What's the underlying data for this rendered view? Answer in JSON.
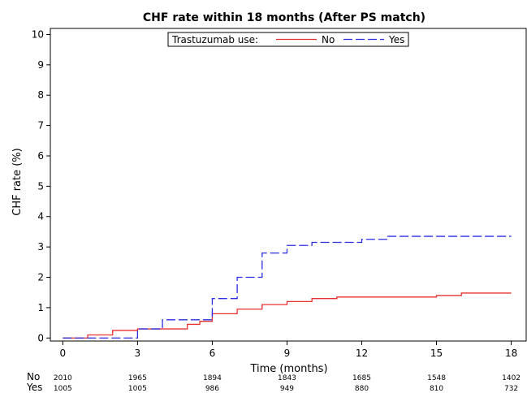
{
  "chart_data": {
    "type": "line",
    "title": "CHF rate within 18 months (After PS match)",
    "xlabel": "Time (months)",
    "ylabel": "CHF rate (%)",
    "xlim": [
      -0.5,
      18.6
    ],
    "ylim": [
      -0.1,
      10.2
    ],
    "xticks": [
      0,
      3,
      6,
      9,
      12,
      15,
      18
    ],
    "yticks": [
      0,
      1,
      2,
      3,
      4,
      5,
      6,
      7,
      8,
      9,
      10
    ],
    "grid": false,
    "legend": {
      "title": "Trastuzumab use:",
      "placement": "top-center",
      "entries": [
        "No",
        "Yes"
      ]
    },
    "series": [
      {
        "name": "No",
        "color": "#e8312f",
        "dash": "solid",
        "step": true,
        "points": [
          [
            0,
            0
          ],
          [
            1,
            0.1
          ],
          [
            2,
            0.25
          ],
          [
            3,
            0.3
          ],
          [
            4,
            0.3
          ],
          [
            5,
            0.45
          ],
          [
            5.5,
            0.55
          ],
          [
            6,
            0.8
          ],
          [
            7,
            0.95
          ],
          [
            8,
            1.1
          ],
          [
            9,
            1.2
          ],
          [
            10,
            1.3
          ],
          [
            11,
            1.35
          ],
          [
            15,
            1.4
          ],
          [
            16,
            1.48
          ],
          [
            18,
            1.48
          ]
        ]
      },
      {
        "name": "Yes",
        "color": "#2b2ee6",
        "dash": "dashed",
        "step": true,
        "points": [
          [
            0,
            0
          ],
          [
            3,
            0.3
          ],
          [
            4,
            0.6
          ],
          [
            6,
            1.3
          ],
          [
            7,
            2.0
          ],
          [
            8,
            2.8
          ],
          [
            9,
            3.05
          ],
          [
            10,
            3.15
          ],
          [
            12,
            3.25
          ],
          [
            13,
            3.35
          ],
          [
            18,
            3.35
          ]
        ]
      }
    ],
    "risk_table": {
      "rows": [
        {
          "label": "No",
          "values": [
            "2010",
            "1965",
            "1894",
            "1843",
            "1685",
            "1548",
            "1402"
          ]
        },
        {
          "label": "Yes",
          "values": [
            "1005",
            "1005",
            "986",
            "949",
            "880",
            "810",
            "732"
          ]
        }
      ]
    }
  }
}
